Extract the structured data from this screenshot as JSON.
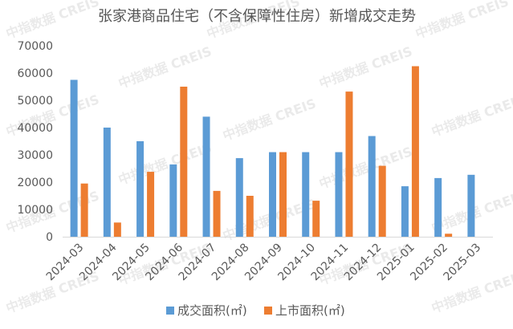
{
  "chart_data": {
    "type": "bar",
    "title": "张家港商品住宅（不含保障性住房）新增成交走势",
    "categories": [
      "2024-03",
      "2024-04",
      "2024-05",
      "2024-06",
      "2024-07",
      "2024-08",
      "2024-09",
      "2024-10",
      "2024-11",
      "2024-12",
      "2025-01",
      "2025-02",
      "2025-03"
    ],
    "series": [
      {
        "name": "成交面积(㎡)",
        "color": "#5b9bd5",
        "values": [
          57500,
          40000,
          35000,
          26500,
          44000,
          28800,
          31000,
          31000,
          31000,
          36900,
          18500,
          21500,
          22700
        ]
      },
      {
        "name": "上市面积(㎡)",
        "color": "#ed7d31",
        "values": [
          19500,
          5200,
          23800,
          55000,
          16800,
          15000,
          31000,
          13200,
          53200,
          26000,
          62500,
          1100,
          null
        ]
      }
    ],
    "ylim": [
      0,
      70000
    ],
    "yticks": [
      "0",
      "10000",
      "20000",
      "30000",
      "40000",
      "50000",
      "60000",
      "70000"
    ],
    "legend_position": "bottom",
    "grid": false,
    "watermark": "中指数据 CREIS"
  }
}
